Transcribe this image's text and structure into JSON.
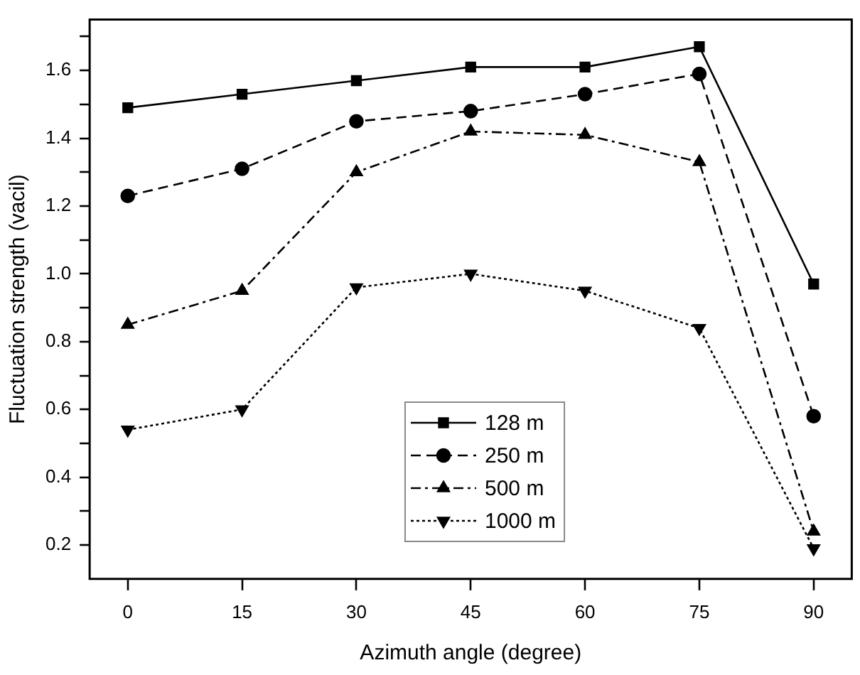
{
  "chart_data": {
    "type": "line",
    "xlabel": "Azimuth angle (degree)",
    "ylabel": "Fluctuation strength (vacil)",
    "x": [
      0,
      15,
      30,
      45,
      60,
      75,
      90
    ],
    "series": [
      {
        "name": "128 m",
        "color": "#000000",
        "marker": "square",
        "line_style": "solid",
        "values": [
          1.49,
          1.53,
          1.57,
          1.61,
          1.61,
          1.67,
          0.97
        ]
      },
      {
        "name": "250 m",
        "color": "#000000",
        "marker": "circle",
        "line_style": "dashed",
        "values": [
          1.23,
          1.31,
          1.45,
          1.48,
          1.53,
          1.59,
          0.58
        ]
      },
      {
        "name": "500 m",
        "color": "#000000",
        "marker": "triangle",
        "line_style": "dashdot",
        "values": [
          0.85,
          0.95,
          1.3,
          1.42,
          1.41,
          1.33,
          0.24
        ]
      },
      {
        "name": "1000 m",
        "color": "#000000",
        "marker": "triangle_down",
        "line_style": "dotted",
        "values": [
          0.54,
          0.6,
          0.96,
          1.0,
          0.95,
          0.84,
          0.19
        ]
      }
    ],
    "xlim": [
      -5,
      95
    ],
    "xticks": [
      0,
      15,
      30,
      45,
      60,
      75,
      90
    ],
    "ylim": [
      0.1,
      1.75
    ],
    "yticks": [
      {
        "value": 0.2,
        "label": "0.2"
      },
      {
        "value": 0.3,
        "label": null
      },
      {
        "value": 0.4,
        "label": "0.4"
      },
      {
        "value": 0.5,
        "label": null
      },
      {
        "value": 0.6,
        "label": "0.6"
      },
      {
        "value": 0.7,
        "label": null
      },
      {
        "value": 0.8,
        "label": "0.8"
      },
      {
        "value": 0.9,
        "label": null
      },
      {
        "value": 1.0,
        "label": "1.0"
      },
      {
        "value": 1.1,
        "label": null
      },
      {
        "value": 1.2,
        "label": "1.2"
      },
      {
        "value": 1.3,
        "label": null
      },
      {
        "value": 1.4,
        "label": "1.4"
      },
      {
        "value": 1.5,
        "label": null
      },
      {
        "value": 1.6,
        "label": "1.6"
      },
      {
        "value": 1.7,
        "label": null
      }
    ],
    "grid": false,
    "legend": "bottom"
  }
}
